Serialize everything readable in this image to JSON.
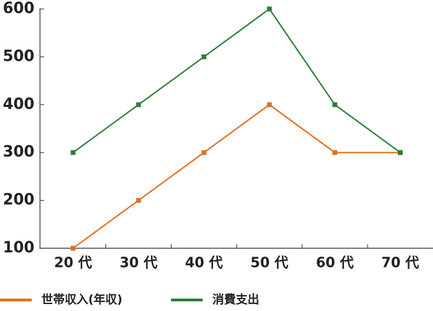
{
  "chart_data": {
    "type": "line",
    "categories": [
      "20 代",
      "30 代",
      "40 代",
      "50 代",
      "60 代",
      "70 代"
    ],
    "series": [
      {
        "name": "世帯収入(年収)",
        "color": "#e07020",
        "values": [
          100,
          200,
          300,
          400,
          300,
          300
        ]
      },
      {
        "name": "消費支出",
        "color": "#2e7d3a",
        "values": [
          300,
          400,
          500,
          600,
          400,
          300
        ]
      }
    ],
    "ylim": [
      100,
      600
    ],
    "yticks": [
      100,
      200,
      300,
      400,
      500,
      600
    ],
    "grid": false
  }
}
